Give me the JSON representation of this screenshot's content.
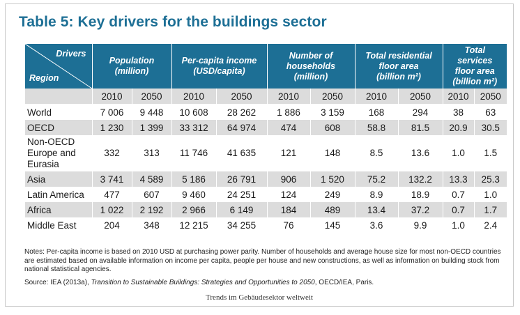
{
  "title": "Table 5: Key drivers for the buildings sector",
  "header": {
    "drivers": "Drivers",
    "region": "Region",
    "groups": [
      {
        "label": "Population (million)"
      },
      {
        "label": "Per-capita income (USD/capita)"
      },
      {
        "label": "Number of households (million)"
      },
      {
        "label": "Total residential floor area (billion m²)"
      },
      {
        "label": "Total services floor area (billion m²)"
      }
    ],
    "years": [
      "2010",
      "2050",
      "2010",
      "2050",
      "2010",
      "2050",
      "2010",
      "2050",
      "2010",
      "2050"
    ]
  },
  "rows": [
    {
      "region": "World",
      "values": [
        "7 006",
        "9 448",
        "10 608",
        "28 262",
        "1 886",
        "3 159",
        "168",
        "294",
        "38",
        "63"
      ]
    },
    {
      "region": "OECD",
      "values": [
        "1 230",
        "1 399",
        "33 312",
        "64 974",
        "474",
        "608",
        "58.8",
        "81.5",
        "20.9",
        "30.5"
      ]
    },
    {
      "region": "Non-OECD Europe and Eurasia",
      "values": [
        "332",
        "313",
        "11 746",
        "41 635",
        "121",
        "148",
        "8.5",
        "13.6",
        "1.0",
        "1.5"
      ]
    },
    {
      "region": "Asia",
      "values": [
        "3 741",
        "4 589",
        "5 186",
        "26 791",
        "906",
        "1 520",
        "75.2",
        "132.2",
        "13.3",
        "25.3"
      ]
    },
    {
      "region": "Latin America",
      "values": [
        "477",
        "607",
        "9 460",
        "24 251",
        "124",
        "249",
        "8.9",
        "18.9",
        "0.7",
        "1.0"
      ]
    },
    {
      "region": "Africa",
      "values": [
        "1 022",
        "2 192",
        "2 966",
        "6 149",
        "184",
        "489",
        "13.4",
        "37.2",
        "0.7",
        "1.7"
      ]
    },
    {
      "region": "Middle East",
      "values": [
        "204",
        "348",
        "12 215",
        "34 255",
        "76",
        "145",
        "3.6",
        "9.9",
        "1.0",
        "2.4"
      ]
    }
  ],
  "notes": "Notes: Per-capita income is based on 2010 USD at purchasing power parity. Number of households and average house size for most non-OECD countries are estimated based on available information on income per capita, people per house and new constructions, as well as information on building stock from national statistical agencies.",
  "source": {
    "prefix": "Source: IEA (2013a), ",
    "title": "Transition to Sustainable Buildings: Strategies and Opportunities to 2050",
    "suffix": ", OECD/IEA, Paris."
  },
  "caption": "Trends im Gebäudesektor weltweit",
  "colors": {
    "accent": "#1d6f95",
    "row_shade": "#dcdcdc"
  }
}
